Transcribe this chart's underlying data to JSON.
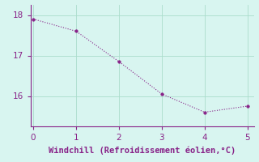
{
  "x": [
    0,
    1,
    2,
    3,
    4,
    5
  ],
  "y": [
    17.9,
    17.6,
    16.85,
    16.05,
    15.6,
    15.75
  ],
  "line_color": "#882288",
  "marker": "o",
  "marker_size": 2.5,
  "background_color": "#d8f5f0",
  "grid_color": "#aaddcc",
  "xlabel": "Windchill (Refroidissement éolien,°C)",
  "xlabel_color": "#882288",
  "xlabel_fontsize": 7.5,
  "tick_color": "#882288",
  "tick_fontsize": 7.5,
  "yticks": [
    16,
    17,
    18
  ],
  "xticks": [
    0,
    1,
    2,
    3,
    4,
    5
  ],
  "xlim": [
    -0.05,
    5.15
  ],
  "ylim": [
    15.25,
    18.25
  ],
  "spine_color": "#882288",
  "line_width": 0.8
}
